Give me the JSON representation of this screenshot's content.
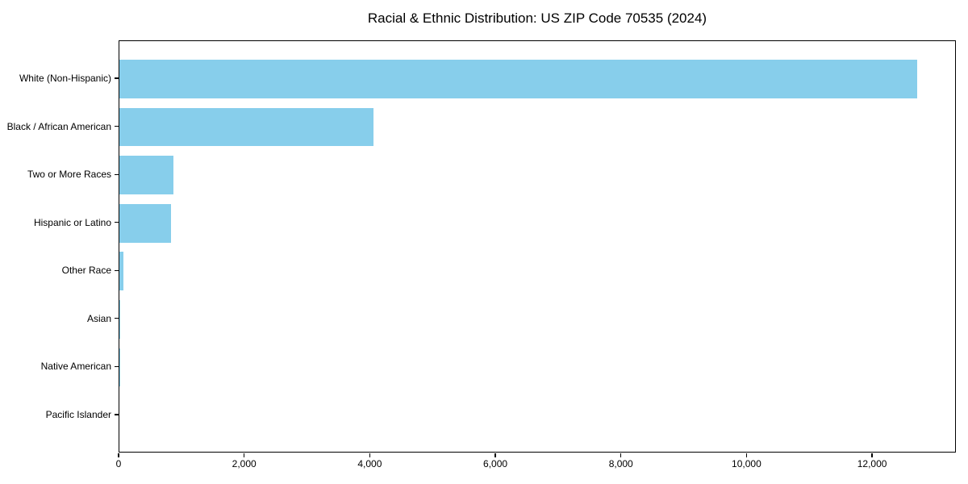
{
  "figure": {
    "background": "#ffffff",
    "spine_color": "#000000",
    "text_color": "#000000"
  },
  "chart_data": {
    "type": "bar",
    "orientation": "horizontal",
    "title": "Racial & Ethnic Distribution: US ZIP Code 70535 (2024)",
    "xlabel": "",
    "ylabel": "",
    "categories": [
      "White (Non-Hispanic)",
      "Black / African American",
      "Two or More Races",
      "Hispanic or Latino",
      "Other Race",
      "Asian",
      "Native American",
      "Pacific Islander"
    ],
    "values": [
      12700,
      4050,
      860,
      820,
      60,
      13,
      3,
      0
    ],
    "bar_color": "#87CEEB",
    "xlim": [
      0,
      13335
    ],
    "x_ticks": [
      0,
      2000,
      4000,
      6000,
      8000,
      10000,
      12000
    ],
    "x_tick_labels": [
      "0",
      "2,000",
      "4,000",
      "6,000",
      "8,000",
      "10,000",
      "12,000"
    ],
    "grid": false,
    "legend": null
  }
}
